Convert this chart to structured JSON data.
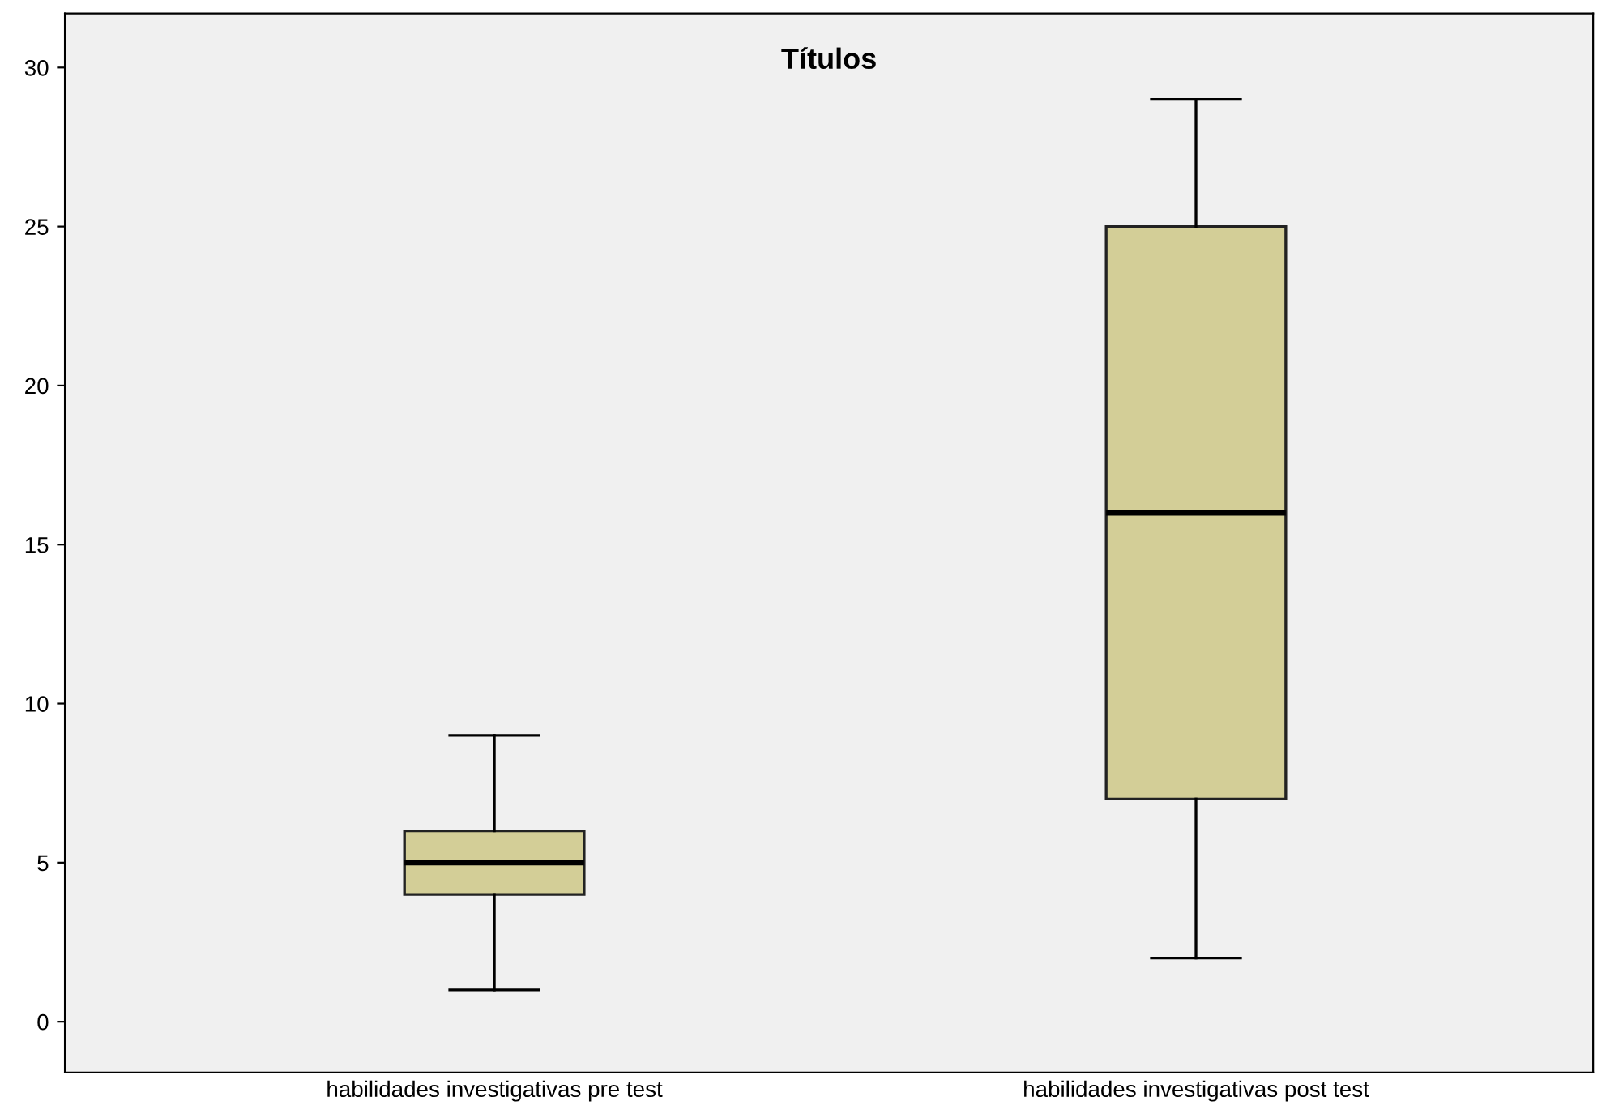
{
  "chart_data": {
    "type": "box",
    "title": "Títulos",
    "categories": [
      "habilidades investigativas pre test",
      "habilidades investigativas post test"
    ],
    "series": [
      {
        "color": "#d3ce97",
        "boxes": [
          {
            "low": 1,
            "q1": 4,
            "median": 5,
            "q3": 6,
            "high": 9
          },
          {
            "low": 2,
            "q1": 7,
            "median": 16,
            "q3": 25,
            "high": 29
          }
        ]
      }
    ],
    "ylim": [
      -1.6,
      31.7
    ],
    "yticks": [
      0,
      5,
      10,
      15,
      20,
      25,
      30
    ],
    "grid": false,
    "legend": false
  }
}
